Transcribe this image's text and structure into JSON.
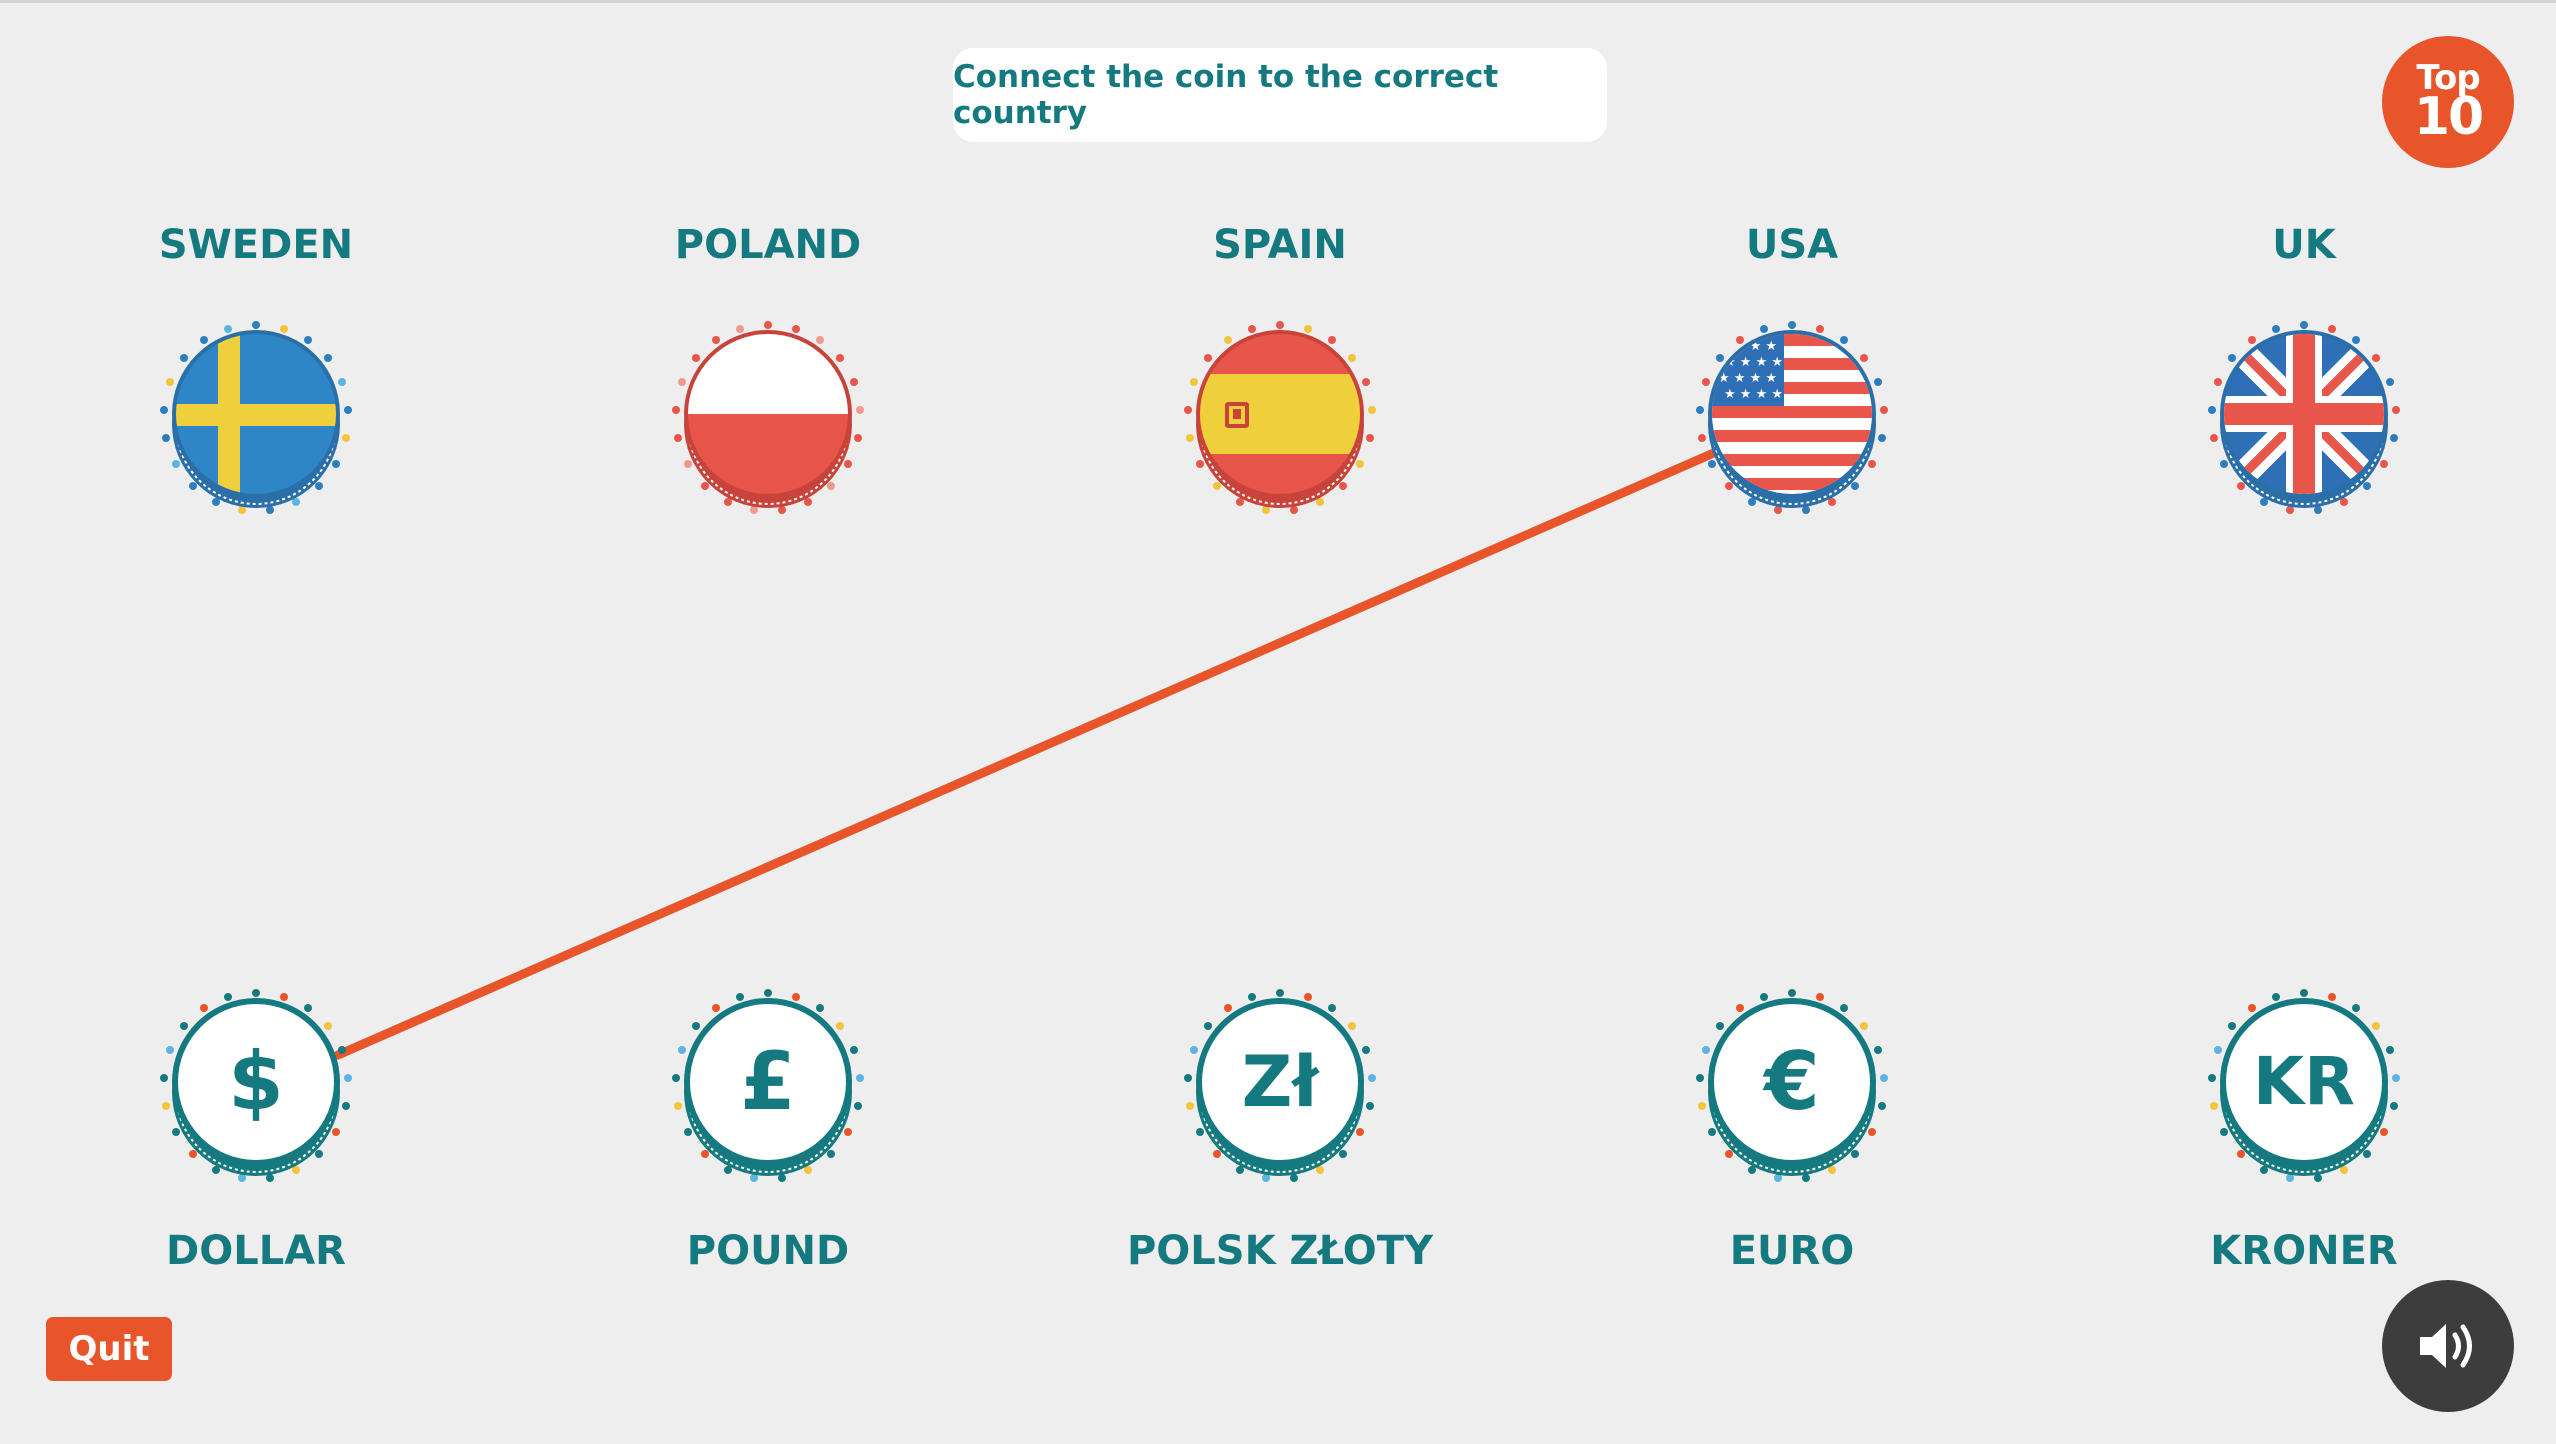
{
  "instruction": "Connect the coin to the correct country",
  "badge": {
    "line1": "Top",
    "line2": "10"
  },
  "countries": [
    {
      "name": "SWEDEN",
      "flag": "sweden-flag"
    },
    {
      "name": "POLAND",
      "flag": "poland-flag"
    },
    {
      "name": "SPAIN",
      "flag": "spain-flag"
    },
    {
      "name": "USA",
      "flag": "usa-flag"
    },
    {
      "name": "UK",
      "flag": "uk-flag"
    }
  ],
  "currencies": [
    {
      "name": "DOLLAR",
      "symbol": "$"
    },
    {
      "name": "POUND",
      "symbol": "£"
    },
    {
      "name": "POLSK ZŁOTY",
      "symbol": "Zł"
    },
    {
      "name": "EURO",
      "symbol": "€"
    },
    {
      "name": "KRONER",
      "symbol": "KR"
    }
  ],
  "connections": [
    {
      "currency": "DOLLAR",
      "country": "USA"
    }
  ],
  "quit_label": "Quit",
  "sound_icon": "speaker-volume-icon",
  "colors": {
    "background": "#eeeeee",
    "teal": "#157a80",
    "accent": "#e8552a",
    "dark": "#3d3d3d"
  }
}
